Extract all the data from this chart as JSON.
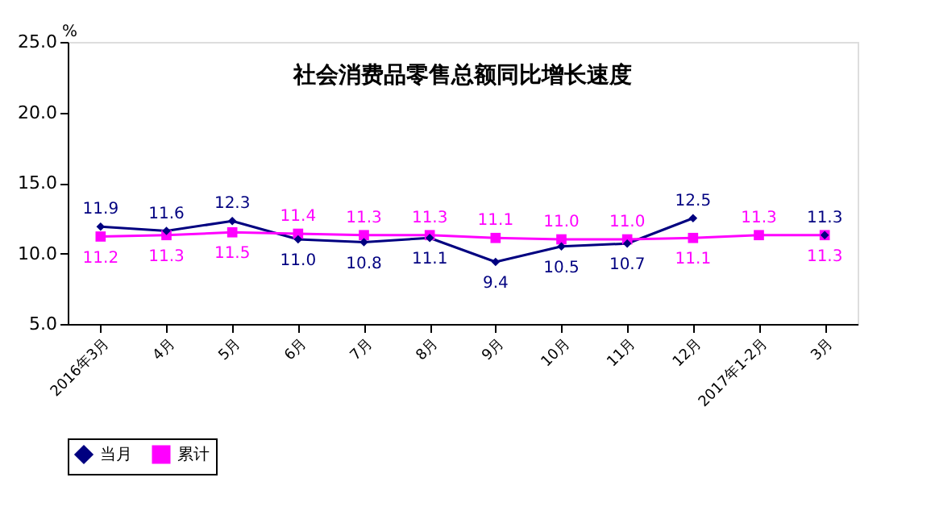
{
  "chart_data": {
    "type": "line",
    "title": "社会消费品零售总额同比增长速度",
    "ylabel": "%",
    "categories": [
      "2016年3月",
      "4月",
      "5月",
      "6月",
      "7月",
      "8月",
      "9月",
      "10月",
      "11月",
      "12月",
      "2017年1-2月",
      "3月"
    ],
    "series": [
      {
        "name": "当月",
        "color": "#000080",
        "marker": "diamond",
        "values": [
          11.9,
          11.6,
          12.3,
          11.0,
          10.8,
          11.1,
          9.4,
          10.5,
          10.7,
          12.5,
          null,
          11.3
        ],
        "value_labels": [
          "11.9",
          "11.6",
          "12.3",
          "11.0",
          "10.8",
          "11.1",
          "9.4",
          "10.5",
          "10.7",
          "12.5",
          null,
          "11.3"
        ]
      },
      {
        "name": "累计",
        "color": "#ff00ff",
        "marker": "square",
        "values": [
          11.2,
          11.3,
          11.5,
          11.4,
          11.3,
          11.3,
          11.1,
          11.0,
          11.0,
          11.1,
          11.3,
          11.3
        ],
        "value_labels": [
          "11.2",
          "11.3",
          "11.5",
          "11.4",
          "11.3",
          "11.3",
          "11.1",
          "11.0",
          "11.0",
          "11.1",
          "11.3",
          "11.3"
        ]
      }
    ],
    "ylim": [
      5,
      25
    ],
    "yticks": [
      {
        "value": 5,
        "label": "5.0"
      },
      {
        "value": 10,
        "label": "10.0"
      },
      {
        "value": 15,
        "label": "15.0"
      },
      {
        "value": 20,
        "label": "20.0"
      },
      {
        "value": 25,
        "label": "25.0"
      }
    ],
    "grid": false,
    "legend": "bottom",
    "line_style": "solid"
  }
}
